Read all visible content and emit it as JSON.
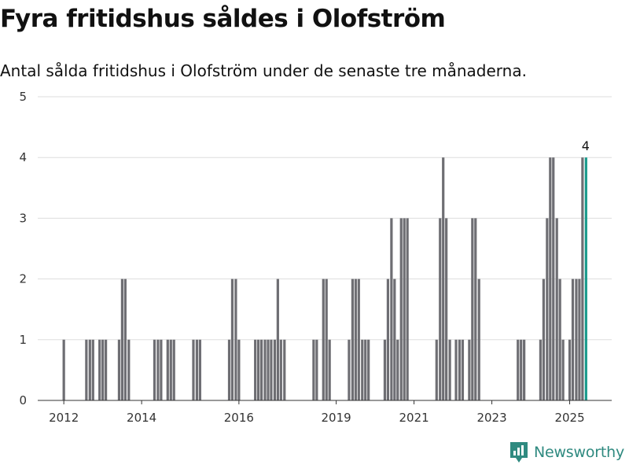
{
  "title": "Fyra fritidshus såldes i Olofström",
  "subtitle": "Antal sålda fritidshus i Olofström under de senaste tre månaderna.",
  "brand": {
    "name": "Newsworthy",
    "icon": "newsworthy-logo-icon"
  },
  "colors": {
    "bar": "#6e6e73",
    "highlight": "#1a9a8c",
    "grid": "#dddddd",
    "brand": "#2f8a80"
  },
  "chart_data": {
    "type": "bar",
    "xlabel": "",
    "ylabel": "",
    "ylim": [
      0,
      5
    ],
    "yticks": [
      0,
      1,
      2,
      3,
      4,
      5
    ],
    "x_tick_labels": [
      "2012",
      "2014",
      "2016",
      "2019",
      "2021",
      "2023",
      "2025"
    ],
    "x_tick_positions": [
      2012,
      2014,
      2016.5,
      2019,
      2021,
      2023,
      2025
    ],
    "x_range": [
      2011.33,
      2026.08
    ],
    "highlight_label": "4",
    "series": [
      {
        "values": [
          {
            "x": 2012.0,
            "y": 1
          },
          {
            "x": 2012.58,
            "y": 1
          },
          {
            "x": 2012.67,
            "y": 1
          },
          {
            "x": 2012.75,
            "y": 1
          },
          {
            "x": 2012.92,
            "y": 1
          },
          {
            "x": 2013.0,
            "y": 1
          },
          {
            "x": 2013.08,
            "y": 1
          },
          {
            "x": 2013.42,
            "y": 1
          },
          {
            "x": 2013.5,
            "y": 2
          },
          {
            "x": 2013.58,
            "y": 2
          },
          {
            "x": 2013.67,
            "y": 1
          },
          {
            "x": 2014.33,
            "y": 1
          },
          {
            "x": 2014.42,
            "y": 1
          },
          {
            "x": 2014.5,
            "y": 1
          },
          {
            "x": 2014.67,
            "y": 1
          },
          {
            "x": 2014.75,
            "y": 1
          },
          {
            "x": 2014.83,
            "y": 1
          },
          {
            "x": 2015.33,
            "y": 1
          },
          {
            "x": 2015.42,
            "y": 1
          },
          {
            "x": 2015.5,
            "y": 1
          },
          {
            "x": 2016.25,
            "y": 1
          },
          {
            "x": 2016.33,
            "y": 2
          },
          {
            "x": 2016.42,
            "y": 2
          },
          {
            "x": 2016.5,
            "y": 1
          },
          {
            "x": 2016.92,
            "y": 1
          },
          {
            "x": 2017.0,
            "y": 1
          },
          {
            "x": 2017.08,
            "y": 1
          },
          {
            "x": 2017.17,
            "y": 1
          },
          {
            "x": 2017.25,
            "y": 1
          },
          {
            "x": 2017.33,
            "y": 1
          },
          {
            "x": 2017.42,
            "y": 1
          },
          {
            "x": 2017.5,
            "y": 2
          },
          {
            "x": 2017.58,
            "y": 1
          },
          {
            "x": 2017.67,
            "y": 1
          },
          {
            "x": 2018.42,
            "y": 1
          },
          {
            "x": 2018.5,
            "y": 1
          },
          {
            "x": 2018.67,
            "y": 2
          },
          {
            "x": 2018.75,
            "y": 2
          },
          {
            "x": 2018.83,
            "y": 1
          },
          {
            "x": 2019.33,
            "y": 1
          },
          {
            "x": 2019.42,
            "y": 2
          },
          {
            "x": 2019.5,
            "y": 2
          },
          {
            "x": 2019.58,
            "y": 2
          },
          {
            "x": 2019.67,
            "y": 1
          },
          {
            "x": 2019.75,
            "y": 1
          },
          {
            "x": 2019.83,
            "y": 1
          },
          {
            "x": 2020.25,
            "y": 1
          },
          {
            "x": 2020.33,
            "y": 2
          },
          {
            "x": 2020.42,
            "y": 3
          },
          {
            "x": 2020.5,
            "y": 2
          },
          {
            "x": 2020.58,
            "y": 1
          },
          {
            "x": 2020.67,
            "y": 3
          },
          {
            "x": 2020.75,
            "y": 3
          },
          {
            "x": 2020.83,
            "y": 3
          },
          {
            "x": 2021.58,
            "y": 1
          },
          {
            "x": 2021.67,
            "y": 3
          },
          {
            "x": 2021.75,
            "y": 4
          },
          {
            "x": 2021.83,
            "y": 3
          },
          {
            "x": 2021.92,
            "y": 1
          },
          {
            "x": 2022.08,
            "y": 1
          },
          {
            "x": 2022.17,
            "y": 1
          },
          {
            "x": 2022.25,
            "y": 1
          },
          {
            "x": 2022.42,
            "y": 1
          },
          {
            "x": 2022.5,
            "y": 3
          },
          {
            "x": 2022.58,
            "y": 3
          },
          {
            "x": 2022.67,
            "y": 2
          },
          {
            "x": 2023.67,
            "y": 1
          },
          {
            "x": 2023.75,
            "y": 1
          },
          {
            "x": 2023.83,
            "y": 1
          },
          {
            "x": 2024.25,
            "y": 1
          },
          {
            "x": 2024.33,
            "y": 2
          },
          {
            "x": 2024.42,
            "y": 3
          },
          {
            "x": 2024.5,
            "y": 4
          },
          {
            "x": 2024.58,
            "y": 4
          },
          {
            "x": 2024.67,
            "y": 3
          },
          {
            "x": 2024.75,
            "y": 2
          },
          {
            "x": 2024.83,
            "y": 1
          },
          {
            "x": 2025.0,
            "y": 1
          },
          {
            "x": 2025.08,
            "y": 2
          },
          {
            "x": 2025.17,
            "y": 2
          },
          {
            "x": 2025.25,
            "y": 2
          },
          {
            "x": 2025.33,
            "y": 4
          },
          {
            "x": 2025.42,
            "y": 4,
            "highlight": true
          }
        ]
      }
    ]
  }
}
